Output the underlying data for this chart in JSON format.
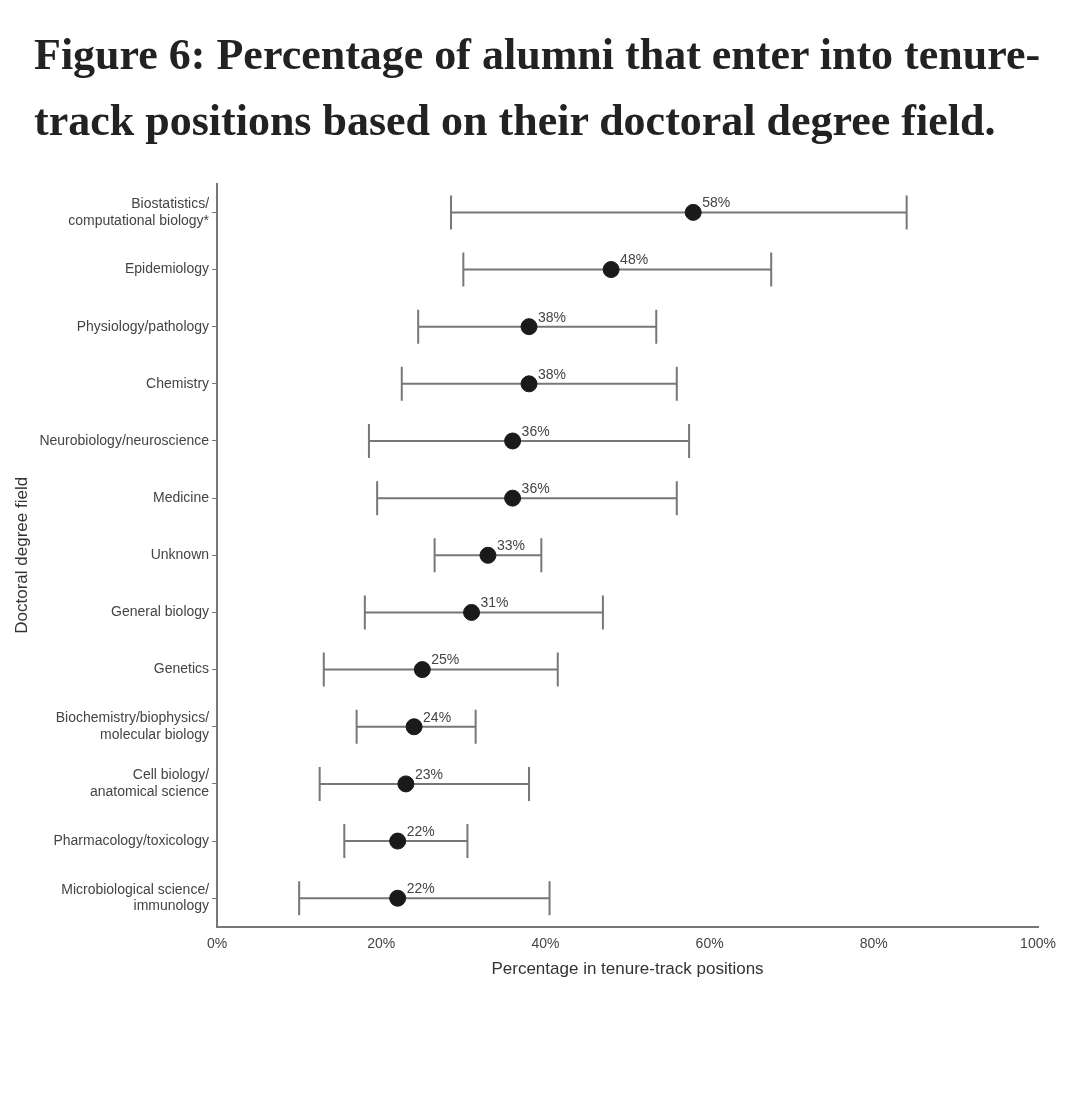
{
  "chart_data": {
    "type": "scatter",
    "orientation": "horizontal",
    "title": "Figure 6: Percentage of alumni that enter into tenure-track positions based on their doctoral degree field.",
    "xlabel": "Percentage in tenure-track positions",
    "ylabel": "Doctoral degree field",
    "categories": [
      "Biostatistics/\ncomputational biology*",
      "Epidemiology",
      "Physiology/pathology",
      "Chemistry",
      "Neurobiology/neuroscience",
      "Medicine",
      "Unknown",
      "General biology",
      "Genetics",
      "Biochemistry/biophysics/\nmolecular biology",
      "Cell biology/\nanatomical science",
      "Pharmacology/toxicology",
      "Microbiological science/\nimmunology"
    ],
    "values": [
      58,
      48,
      38,
      38,
      36,
      36,
      33,
      31,
      25,
      24,
      23,
      22,
      22
    ],
    "value_labels": [
      "58%",
      "48%",
      "38%",
      "38%",
      "36%",
      "36%",
      "33%",
      "31%",
      "25%",
      "24%",
      "23%",
      "22%",
      "22%"
    ],
    "errors": [
      [
        28.5,
        84
      ],
      [
        30,
        67.5
      ],
      [
        24.5,
        53.5
      ],
      [
        22.5,
        56
      ],
      [
        18.5,
        57.5
      ],
      [
        19.5,
        56
      ],
      [
        26.5,
        39.5
      ],
      [
        18,
        47
      ],
      [
        13,
        41.5
      ],
      [
        17,
        31.5
      ],
      [
        12.5,
        38
      ],
      [
        15.5,
        30.5
      ],
      [
        10,
        40.5
      ]
    ],
    "color": "#1a1a1a",
    "marker": "circle",
    "xlim": [
      0,
      100
    ],
    "xticks": [
      {
        "value": 0,
        "label": "0%"
      },
      {
        "value": 20,
        "label": "20%"
      },
      {
        "value": 40,
        "label": "40%"
      },
      {
        "value": 60,
        "label": "60%"
      },
      {
        "value": 80,
        "label": "80%"
      },
      {
        "value": 100,
        "label": "100%"
      }
    ],
    "grid": false,
    "legend": false
  }
}
